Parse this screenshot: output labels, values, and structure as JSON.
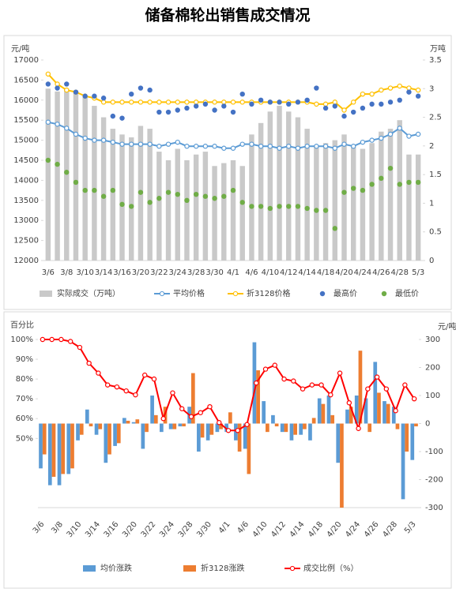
{
  "title": "储备棉轮出销售成交情况",
  "chart_data": [
    {
      "type": "combo",
      "ylabel": "元/吨",
      "y2label": "万吨",
      "categories": [
        "3/6",
        null,
        "3/8",
        null,
        "3/10",
        null,
        "3/14",
        null,
        "3/16",
        null,
        "3/20",
        null,
        "3/22",
        null,
        "3/24",
        null,
        "3/28",
        null,
        "3/30",
        null,
        "4/1",
        null,
        "4/6",
        null,
        "4/10",
        null,
        "4/12",
        null,
        "4/14",
        null,
        "4/18",
        null,
        "4/20",
        null,
        "4/24",
        null,
        "4/26",
        null,
        "4/28",
        null,
        "5/3"
      ],
      "ylim": [
        12000,
        17000
      ],
      "yticks": [
        12000,
        12500,
        13000,
        13500,
        14000,
        14500,
        15000,
        15500,
        16000,
        16500,
        17000
      ],
      "y2lim": [
        0,
        3.5
      ],
      "y2ticks": [
        0,
        0.5,
        1,
        1.5,
        2,
        2.5,
        3,
        3.5
      ],
      "series": [
        {
          "name": "实际成交（万吨）",
          "type": "bar",
          "axis": "y2",
          "color": "#c9c9c9",
          "values": [
            3.0,
            2.95,
            3.0,
            2.95,
            2.85,
            2.7,
            2.5,
            2.3,
            2.2,
            2.15,
            2.35,
            2.3,
            1.9,
            1.75,
            1.95,
            1.75,
            1.85,
            1.9,
            1.65,
            1.7,
            1.75,
            1.65,
            2.2,
            2.4,
            2.6,
            2.7,
            2.6,
            2.5,
            2.3,
            2.0,
            2.05,
            2.1,
            2.2,
            2.0,
            1.95,
            2.05,
            2.25,
            2.3,
            2.45,
            1.85,
            1.85
          ]
        },
        {
          "name": "平均价格",
          "type": "line",
          "marker": true,
          "color": "#5b9bd5",
          "values": [
            15450,
            15400,
            15300,
            15150,
            15050,
            15000,
            15000,
            14950,
            14900,
            14900,
            14900,
            14900,
            14850,
            14900,
            14950,
            14850,
            14850,
            14850,
            14850,
            14800,
            14800,
            14900,
            14900,
            14850,
            14850,
            14800,
            14850,
            14800,
            14850,
            14850,
            14850,
            14800,
            14900,
            14850,
            14950,
            15000,
            15050,
            15150,
            15300,
            15100,
            15150
          ]
        },
        {
          "name": "折3128价格",
          "type": "line",
          "marker": true,
          "color": "#ffc000",
          "values": [
            16650,
            16400,
            16250,
            16200,
            16100,
            16050,
            15950,
            15950,
            15950,
            15950,
            15950,
            15950,
            15950,
            15950,
            15950,
            15950,
            15950,
            15950,
            15950,
            15950,
            15950,
            15950,
            15950,
            15950,
            15950,
            15950,
            15950,
            15950,
            15950,
            15900,
            15900,
            15950,
            15750,
            15950,
            16150,
            16150,
            16250,
            16300,
            16350,
            16300,
            16250
          ]
        },
        {
          "name": "最高价",
          "type": "scatter",
          "color": "#4472c4",
          "values": [
            16400,
            16300,
            16400,
            16200,
            16100,
            16100,
            16050,
            15600,
            15550,
            16150,
            16300,
            16250,
            15700,
            15700,
            15750,
            15800,
            15850,
            15900,
            15750,
            15850,
            15700,
            16150,
            15900,
            16000,
            15950,
            15950,
            15900,
            15950,
            16000,
            16300,
            15800,
            15850,
            15600,
            15700,
            15800,
            15900,
            15900,
            15950,
            16000,
            16200,
            16100
          ]
        },
        {
          "name": "最低价",
          "type": "scatter",
          "color": "#70ad47",
          "values": [
            14500,
            14400,
            14200,
            13950,
            13750,
            13750,
            13600,
            13750,
            13400,
            13350,
            13700,
            13450,
            13550,
            13700,
            13650,
            13500,
            13650,
            13600,
            13550,
            13600,
            13750,
            13450,
            13350,
            13350,
            13300,
            13350,
            13350,
            13350,
            13300,
            13250,
            13250,
            12800,
            13700,
            13800,
            13750,
            13900,
            14050,
            14300,
            13900,
            13950,
            13950
          ]
        }
      ]
    },
    {
      "type": "combo",
      "ylabel": "百分比",
      "y2label": "元/吨",
      "categories": [
        "3/6",
        null,
        "3/8",
        null,
        "3/10",
        null,
        "3/14",
        null,
        "3/16",
        null,
        "3/20",
        null,
        "3/22",
        null,
        "3/24",
        null,
        "3/28",
        null,
        "3/30",
        null,
        "4/1",
        null,
        "4/6",
        null,
        "4/10",
        null,
        "4/12",
        null,
        "4/14",
        null,
        "4/18",
        null,
        "4/20",
        null,
        "4/24",
        null,
        "4/26",
        null,
        "4/28",
        null,
        "5/3"
      ],
      "ylim": [
        15,
        100
      ],
      "yticks": [
        {
          "value": 50,
          "label": "50%"
        },
        {
          "value": 60,
          "label": "60%"
        },
        {
          "value": 70,
          "label": "70%"
        },
        {
          "value": 80,
          "label": "80%"
        },
        {
          "value": 90,
          "label": "90%"
        },
        {
          "value": 100,
          "label": "100%"
        }
      ],
      "y2lim": [
        -300,
        300
      ],
      "y2ticks": [
        -300,
        -200,
        -100,
        0,
        100,
        200,
        300
      ],
      "series": [
        {
          "name": "均价涨跌",
          "type": "bar",
          "axis": "y2",
          "color": "#5b9bd5",
          "values": [
            -160,
            -220,
            -220,
            -180,
            -60,
            50,
            -40,
            -140,
            -80,
            20,
            5,
            -90,
            100,
            -30,
            -20,
            -10,
            60,
            -100,
            -60,
            -30,
            -30,
            -60,
            -90,
            290,
            80,
            30,
            -30,
            -60,
            -40,
            -60,
            90,
            100,
            -140,
            50,
            100,
            90,
            220,
            80,
            60,
            -270,
            -130
          ]
        },
        {
          "name": "折3128涨跌",
          "type": "bar",
          "axis": "y2",
          "color": "#ed7d31",
          "values": [
            -110,
            -190,
            -180,
            -160,
            -40,
            -10,
            -20,
            -110,
            -70,
            10,
            15,
            -30,
            30,
            60,
            -20,
            -10,
            180,
            -50,
            -40,
            -20,
            40,
            -100,
            -180,
            190,
            -30,
            -10,
            -30,
            -40,
            -20,
            20,
            70,
            30,
            -300,
            60,
            260,
            -30,
            110,
            70,
            -20,
            -100,
            -10
          ]
        },
        {
          "name": "成交比例（%）",
          "type": "line",
          "marker": true,
          "color": "#ff0000",
          "values": [
            100,
            100,
            100,
            99,
            96,
            88,
            83,
            77,
            76,
            74,
            72,
            82,
            80,
            60,
            73,
            65,
            61,
            63,
            66,
            58,
            54,
            54,
            57,
            78,
            85,
            87,
            80,
            79,
            75,
            77,
            77,
            72,
            83,
            68,
            55,
            75,
            81,
            75,
            64,
            77,
            70
          ]
        }
      ]
    }
  ]
}
